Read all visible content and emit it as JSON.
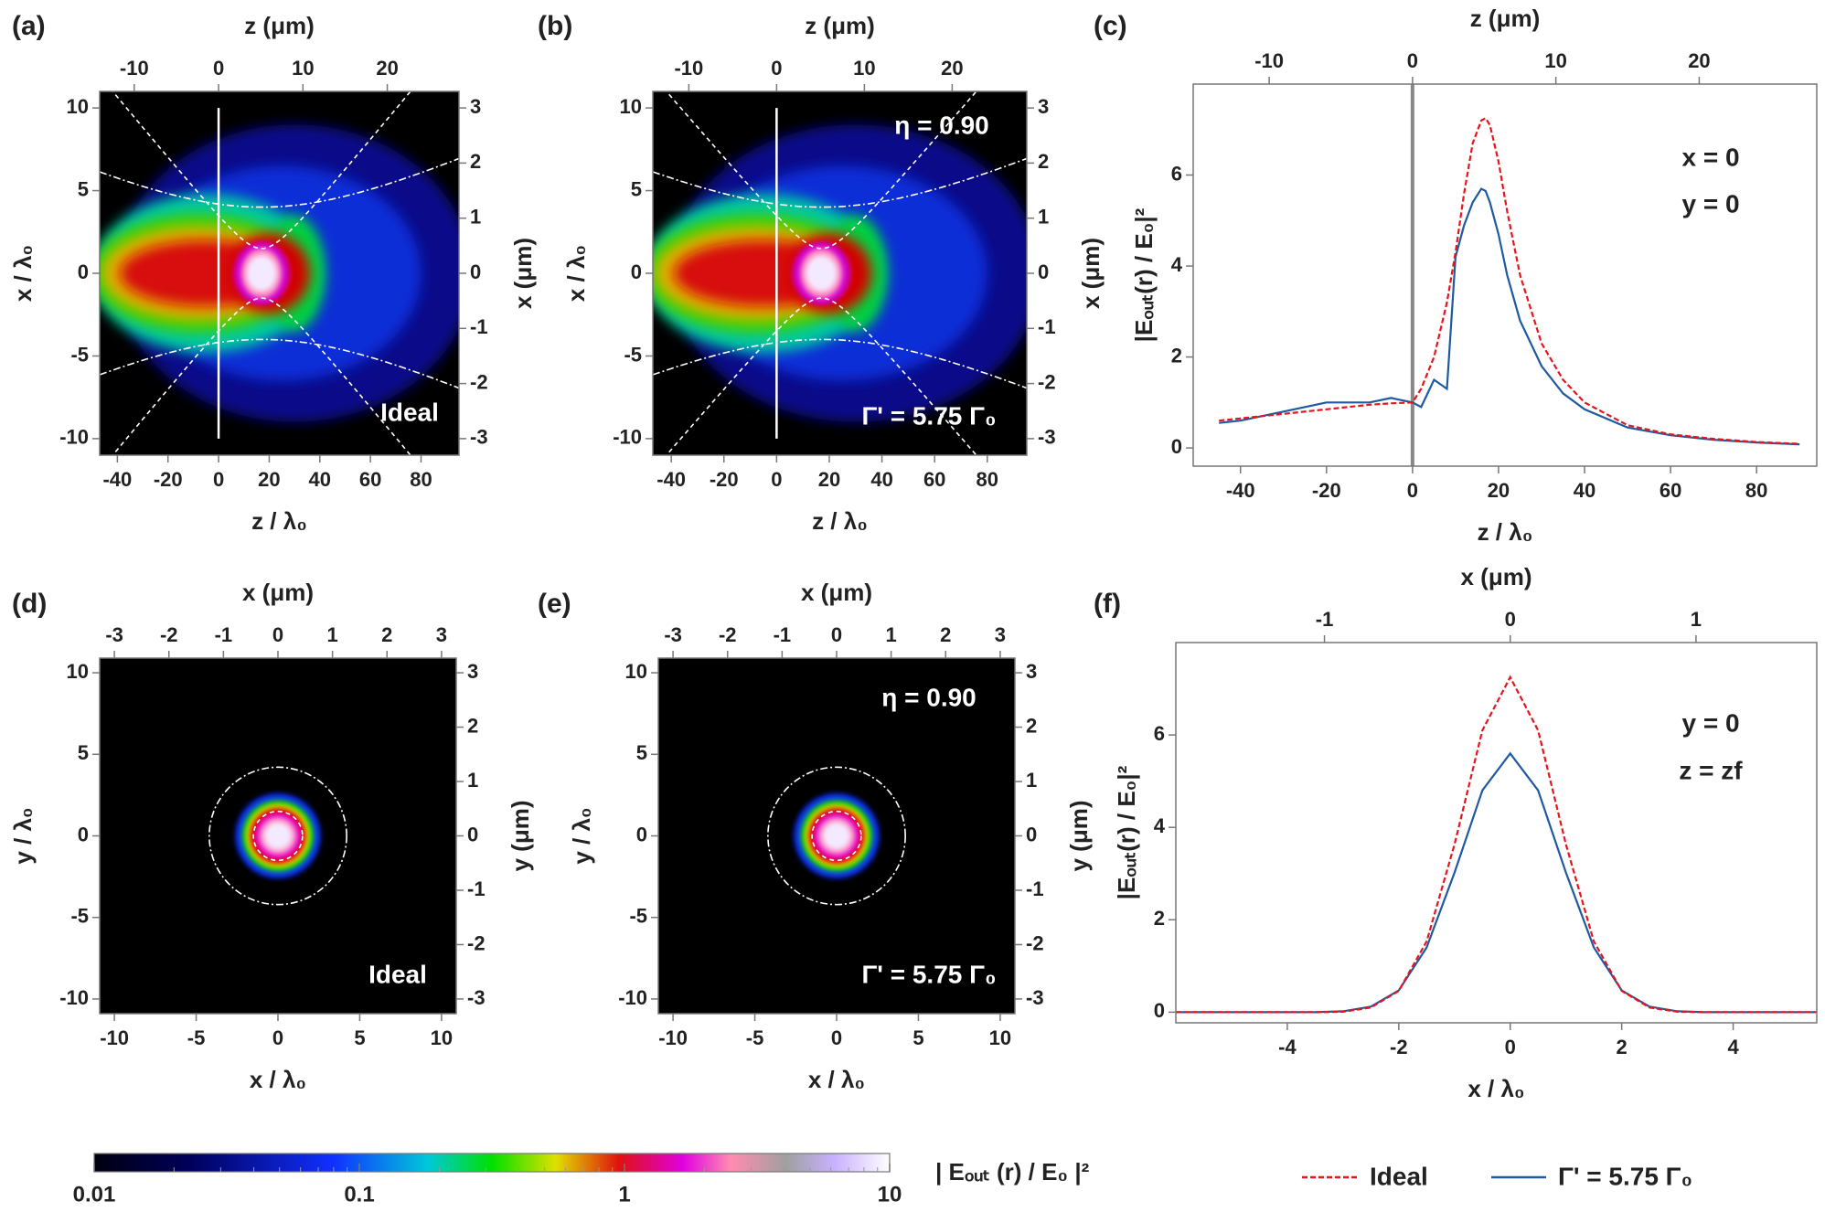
{
  "chart_data": [
    {
      "type": "heatmap",
      "panel": "(a)",
      "xlabel": "z / λ₀",
      "x2label": "z (μm)",
      "ylabel": "x / λ₀",
      "y2label": "x (μm)",
      "xlim": [
        -47,
        95
      ],
      "x2lim": [
        -14.1,
        28.5
      ],
      "ylim": [
        -11,
        11
      ],
      "y2lim": [
        -3.3,
        3.3
      ],
      "xticks": [
        -40,
        -20,
        0,
        20,
        40,
        60,
        80
      ],
      "x2ticks": [
        -10,
        0,
        10,
        20
      ],
      "yticks": [
        -10,
        -5,
        0,
        5,
        10
      ],
      "y2ticks": [
        -3,
        -2,
        -1,
        0,
        1,
        2,
        3
      ],
      "annotations": [
        "Ideal"
      ]
    },
    {
      "type": "heatmap",
      "panel": "(b)",
      "xlabel": "z / λ₀",
      "x2label": "z (μm)",
      "ylabel": "x / λ₀",
      "y2label": "x (μm)",
      "xlim": [
        -47,
        95
      ],
      "x2lim": [
        -14.1,
        28.5
      ],
      "ylim": [
        -11,
        11
      ],
      "y2lim": [
        -3.3,
        3.3
      ],
      "xticks": [
        -40,
        -20,
        0,
        20,
        40,
        60,
        80
      ],
      "x2ticks": [
        -10,
        0,
        10,
        20
      ],
      "yticks": [
        -10,
        -5,
        0,
        5,
        10
      ],
      "y2ticks": [
        -3,
        -2,
        -1,
        0,
        1,
        2,
        3
      ],
      "annotations": [
        "η = 0.90",
        "Γ' = 5.75 Γ₀"
      ]
    },
    {
      "type": "line",
      "panel": "(c)",
      "xlabel": "z / λ₀",
      "x2label": "z (μm)",
      "ylabel": "|Eₒᵤₜ(r) / E₀|²",
      "xlim": [
        -51,
        94
      ],
      "x2lim": [
        -15.3,
        28.2
      ],
      "ylim": [
        -0.4,
        8
      ],
      "xticks": [
        -40,
        -20,
        0,
        20,
        40,
        60,
        80
      ],
      "x2ticks": [
        -10,
        0,
        10,
        20
      ],
      "yticks": [
        0,
        2,
        4,
        6
      ],
      "x": [
        -45,
        -40,
        -30,
        -20,
        -15,
        -10,
        -5,
        0,
        2,
        5,
        8,
        10,
        12,
        14,
        16,
        17,
        18,
        20,
        22,
        25,
        30,
        35,
        40,
        50,
        60,
        70,
        80,
        90
      ],
      "series": [
        {
          "color": "#e8141c",
          "dashed": true,
          "values": [
            0.6,
            0.65,
            0.75,
            0.85,
            0.9,
            0.95,
            0.98,
            1.0,
            1.3,
            2.0,
            3.2,
            4.3,
            5.6,
            6.7,
            7.2,
            7.25,
            7.1,
            6.3,
            5.2,
            3.8,
            2.3,
            1.5,
            1.0,
            0.5,
            0.3,
            0.2,
            0.13,
            0.09
          ]
        },
        {
          "color": "#1f5aa0",
          "dashed": false,
          "values": [
            0.55,
            0.6,
            0.8,
            1.0,
            1.0,
            1.0,
            1.1,
            1.0,
            0.9,
            1.5,
            1.3,
            4.2,
            4.9,
            5.4,
            5.7,
            5.65,
            5.4,
            4.7,
            3.8,
            2.8,
            1.8,
            1.2,
            0.85,
            0.45,
            0.28,
            0.18,
            0.12,
            0.08
          ]
        }
      ],
      "annotations": [
        "x = 0",
        "y = 0"
      ]
    },
    {
      "type": "heatmap",
      "panel": "(d)",
      "xlabel": "x / λ₀",
      "x2label": "x (μm)",
      "ylabel": "y / λ₀",
      "y2label": "y (μm)",
      "xlim": [
        -10.9,
        10.9
      ],
      "x2lim": [
        -3.27,
        3.27
      ],
      "ylim": [
        -10.9,
        10.9
      ],
      "y2lim": [
        -3.27,
        3.27
      ],
      "xticks": [
        -10,
        -5,
        0,
        5,
        10
      ],
      "x2ticks": [
        -3,
        -2,
        -1,
        0,
        1,
        2,
        3
      ],
      "yticks": [
        -10,
        -5,
        0,
        5,
        10
      ],
      "y2ticks": [
        -3,
        -2,
        -1,
        0,
        1,
        2,
        3
      ],
      "annotations": [
        "Ideal"
      ]
    },
    {
      "type": "heatmap",
      "panel": "(e)",
      "xlabel": "x / λ₀",
      "x2label": "x (μm)",
      "ylabel": "y / λ₀",
      "y2label": "y (μm)",
      "xlim": [
        -10.9,
        10.9
      ],
      "x2lim": [
        -3.27,
        3.27
      ],
      "ylim": [
        -10.9,
        10.9
      ],
      "y2lim": [
        -3.27,
        3.27
      ],
      "xticks": [
        -10,
        -5,
        0,
        5,
        10
      ],
      "x2ticks": [
        -3,
        -2,
        -1,
        0,
        1,
        2,
        3
      ],
      "yticks": [
        -10,
        -5,
        0,
        5,
        10
      ],
      "y2ticks": [
        -3,
        -2,
        -1,
        0,
        1,
        2,
        3
      ],
      "annotations": [
        "η = 0.90",
        "Γ' = 5.75 Γ₀"
      ]
    },
    {
      "type": "line",
      "panel": "(f)",
      "xlabel": "x / λ₀",
      "x2label": "x (μm)",
      "ylabel": "|Eₒᵤₜ(r) / E₀|²",
      "xlim": [
        -6,
        5.5
      ],
      "x2lim": [
        -1.8,
        1.65
      ],
      "ylim": [
        -0.23,
        8
      ],
      "xticks": [
        -4,
        -2,
        0,
        2,
        4
      ],
      "x2ticks": [
        -1,
        0,
        1
      ],
      "yticks": [
        0,
        2,
        4,
        6
      ],
      "x": [
        -6,
        -5.5,
        -5,
        -4.5,
        -4,
        -3.5,
        -3,
        -2.5,
        -2,
        -1.5,
        -1,
        -0.5,
        0,
        0.5,
        1,
        1.5,
        2,
        2.5,
        3,
        3.5,
        4,
        4.5,
        5,
        5.5
      ],
      "series": [
        {
          "name": "Ideal",
          "color": "#e8141c",
          "dashed": true,
          "values": [
            0,
            0,
            0,
            0,
            0,
            0,
            0.01,
            0.1,
            0.46,
            1.53,
            3.63,
            6.1,
            7.25,
            6.1,
            3.63,
            1.53,
            0.46,
            0.1,
            0.01,
            0,
            0,
            0,
            0,
            0
          ]
        },
        {
          "name": "Γ' = 5.75 Γ₀",
          "color": "#1f5aa0",
          "dashed": false,
          "values": [
            0,
            0,
            0,
            0,
            0,
            0,
            0.02,
            0.12,
            0.47,
            1.4,
            3.02,
            4.8,
            5.6,
            4.8,
            3.02,
            1.4,
            0.47,
            0.12,
            0.02,
            0,
            0,
            0,
            0,
            0
          ]
        }
      ],
      "annotations": [
        "y = 0",
        "z = zf"
      ]
    },
    {
      "type": "colorbar",
      "label": "| Eₒᵤₜ (r) / E₀ |²",
      "xlim": [
        0.01,
        10
      ],
      "xticks": [
        0.01,
        0.1,
        1,
        10
      ],
      "log_scale": true
    }
  ]
}
